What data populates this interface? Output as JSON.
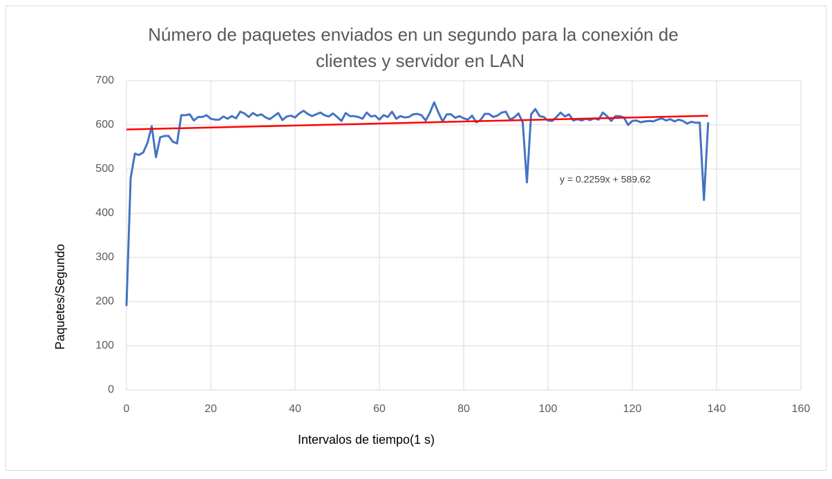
{
  "chart_data": {
    "type": "line",
    "title": [
      "Número de paquetes enviados en un segundo para la conexión de",
      "clientes y servidor en LAN"
    ],
    "xlabel": "Intervalos de tiempo(1 s)",
    "ylabel": "Paquetes/Segundo",
    "annotation": "y = 0.2259x + 589.62",
    "grid": true,
    "xlim": [
      0,
      160
    ],
    "xticks": [
      0,
      20,
      40,
      60,
      80,
      100,
      120,
      140,
      160
    ],
    "ylim": [
      0,
      700
    ],
    "yticks": [
      0,
      100,
      200,
      300,
      400,
      500,
      600,
      700
    ],
    "series": [
      {
        "color": "#4472c4",
        "x": [
          0,
          1,
          2,
          3,
          4,
          5,
          6,
          7,
          8,
          9,
          10,
          11,
          12,
          13,
          14,
          15,
          16,
          17,
          18,
          19,
          20,
          21,
          22,
          23,
          24,
          25,
          26,
          27,
          28,
          29,
          30,
          31,
          32,
          33,
          34,
          35,
          36,
          37,
          38,
          39,
          40,
          41,
          42,
          43,
          44,
          45,
          46,
          47,
          48,
          49,
          50,
          51,
          52,
          53,
          54,
          55,
          56,
          57,
          58,
          59,
          60,
          61,
          62,
          63,
          64,
          65,
          66,
          67,
          68,
          69,
          70,
          71,
          72,
          73,
          74,
          75,
          76,
          77,
          78,
          79,
          80,
          81,
          82,
          83,
          84,
          85,
          86,
          87,
          88,
          89,
          90,
          91,
          92,
          93,
          94,
          95,
          96,
          97,
          98,
          99,
          100,
          101,
          102,
          103,
          104,
          105,
          106,
          107,
          108,
          109,
          110,
          111,
          112,
          113,
          114,
          115,
          116,
          117,
          118,
          119,
          120,
          121,
          122,
          123,
          124,
          125,
          126,
          127,
          128,
          129,
          130,
          131,
          132,
          133,
          134,
          135,
          136,
          137,
          138
        ],
        "values": [
          190,
          480,
          535,
          532,
          538,
          560,
          597,
          527,
          572,
          575,
          575,
          562,
          558,
          622,
          622,
          624,
          610,
          618,
          618,
          622,
          614,
          612,
          612,
          619,
          614,
          620,
          615,
          630,
          626,
          618,
          627,
          621,
          624,
          617,
          613,
          620,
          627,
          611,
          619,
          621,
          617,
          626,
          632,
          625,
          620,
          624,
          628,
          622,
          619,
          626,
          618,
          609,
          627,
          620,
          620,
          618,
          614,
          628,
          619,
          621,
          612,
          622,
          618,
          630,
          614,
          620,
          617,
          618,
          624,
          625,
          622,
          610,
          628,
          651,
          628,
          608,
          624,
          624,
          616,
          620,
          615,
          612,
          621,
          606,
          611,
          625,
          625,
          618,
          621,
          628,
          630,
          612,
          617,
          626,
          606,
          470,
          624,
          636,
          620,
          618,
          610,
          609,
          618,
          628,
          619,
          624,
          610,
          613,
          610,
          614,
          611,
          615,
          612,
          628,
          620,
          609,
          620,
          620,
          617,
          600,
          609,
          610,
          606,
          608,
          609,
          608,
          612,
          615,
          610,
          613,
          608,
          612,
          609,
          603,
          607,
          605,
          605,
          430,
          606
        ]
      },
      {
        "color": "#ff0000",
        "x": [
          0,
          138
        ],
        "values": [
          589.62,
          620.79
        ]
      }
    ]
  }
}
